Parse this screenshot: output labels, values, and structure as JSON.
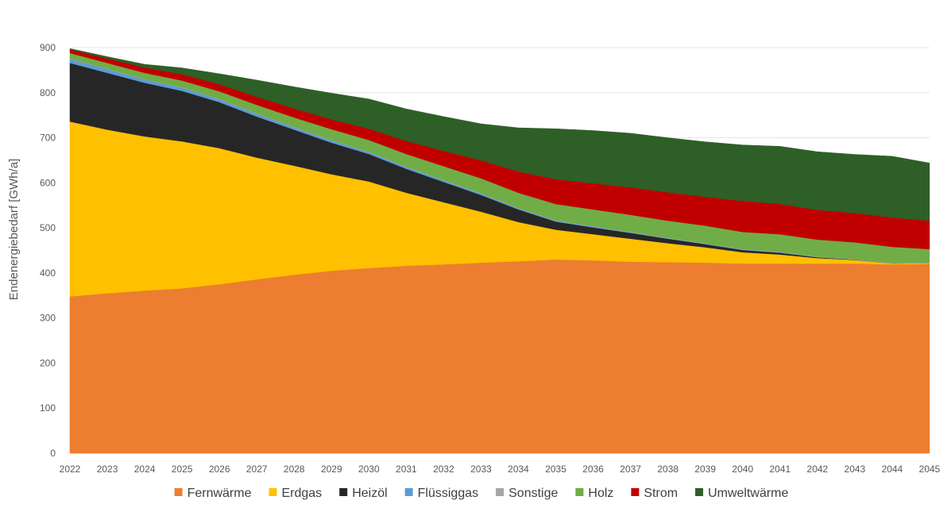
{
  "chart_data": {
    "type": "area",
    "stacked": true,
    "title": "",
    "xlabel": "",
    "ylabel": "Endenergiebedarf [GWh/a]",
    "ylim": [
      0,
      900
    ],
    "yticks": [
      0,
      100,
      200,
      300,
      400,
      500,
      600,
      700,
      800,
      900
    ],
    "x": [
      "2022",
      "2023",
      "2024",
      "2025",
      "2026",
      "2027",
      "2028",
      "2029",
      "2030",
      "2031",
      "2032",
      "2033",
      "2034",
      "2035",
      "2036",
      "2037",
      "2038",
      "2039",
      "2040",
      "2041",
      "2042",
      "2043",
      "2044",
      "2045"
    ],
    "grid": true,
    "legend_position": "bottom",
    "series": [
      {
        "name": "Fernwärme",
        "color": "#ED7D31",
        "values": [
          348,
          355,
          361,
          366,
          375,
          386,
          396,
          405,
          411,
          416,
          419,
          423,
          426,
          430,
          428,
          425,
          424,
          423,
          421,
          421,
          421,
          421,
          419,
          420
        ]
      },
      {
        "name": "Erdgas",
        "color": "#FFC000",
        "values": [
          388,
          363,
          342,
          326,
          302,
          270,
          242,
          214,
          192,
          162,
          138,
          113,
          87,
          66,
          58,
          51,
          42,
          34,
          25,
          20,
          12,
          8,
          2,
          2
        ]
      },
      {
        "name": "Heizöl",
        "color": "#262626",
        "values": [
          130,
          126,
          119,
          112,
          102,
          91,
          80,
          70,
          61,
          53,
          45,
          37,
          28,
          18,
          15,
          13,
          10,
          7,
          5,
          4,
          2,
          1,
          0,
          0
        ]
      },
      {
        "name": "Flüssiggas",
        "color": "#5B9BD5",
        "values": [
          9,
          8,
          7,
          7,
          6,
          6,
          5,
          5,
          4,
          4,
          3,
          3,
          2,
          2,
          2,
          1,
          1,
          1,
          1,
          1,
          0,
          0,
          0,
          0
        ]
      },
      {
        "name": "Sonstige",
        "color": "#A5A5A5",
        "values": [
          1,
          1,
          1,
          1,
          1,
          1,
          1,
          1,
          1,
          1,
          1,
          1,
          1,
          1,
          1,
          1,
          1,
          1,
          1,
          1,
          1,
          1,
          1,
          1
        ]
      },
      {
        "name": "Holz",
        "color": "#70AD47",
        "values": [
          12,
          13,
          14,
          15,
          17,
          19,
          21,
          24,
          26,
          28,
          31,
          33,
          34,
          36,
          37,
          38,
          38,
          39,
          38,
          39,
          38,
          37,
          36,
          30
        ]
      },
      {
        "name": "Strom",
        "color": "#C00000",
        "values": [
          8,
          10,
          12,
          14,
          16,
          18,
          20,
          22,
          25,
          29,
          34,
          40,
          47,
          55,
          58,
          61,
          63,
          64,
          69,
          67,
          66,
          65,
          65,
          63
        ]
      },
      {
        "name": "Umweltwärme",
        "color": "#2E5F27",
        "values": [
          2,
          4,
          7,
          14,
          23,
          37,
          48,
          58,
          66,
          71,
          76,
          81,
          97,
          112,
          117,
          120,
          121,
          122,
          124,
          128,
          129,
          130,
          136,
          128
        ]
      }
    ]
  }
}
